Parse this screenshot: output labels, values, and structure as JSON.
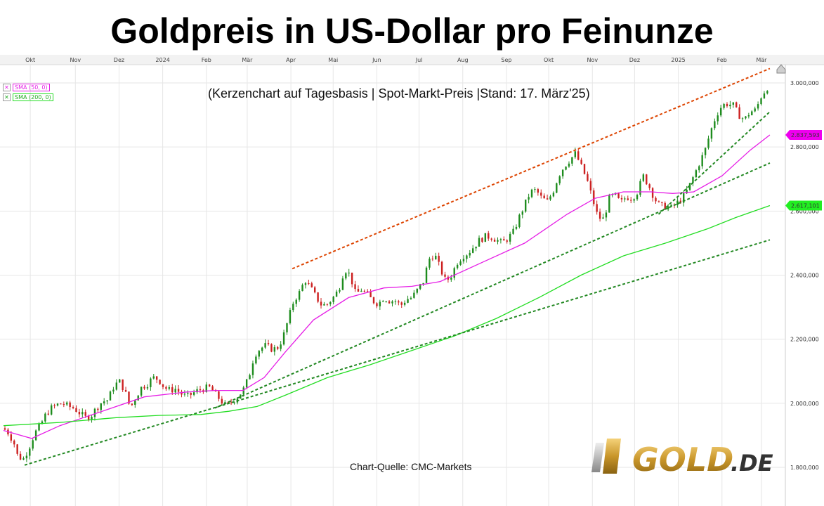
{
  "title": "Goldpreis in US-Dollar pro Feinunze",
  "subtitle": "(Kerzenchart auf Tagesbasis | Spot-Markt-Preis |Stand: 17. März'25)",
  "source": "Chart-Quelle: CMC-Markets",
  "logo_text": "GOLD.DE",
  "legend": [
    {
      "label": "SMA (50, 0)",
      "color": "#e61ee6"
    },
    {
      "label": "SMA (200, 0)",
      "color": "#22dd22"
    }
  ],
  "price_tags": [
    {
      "value": 2837.593,
      "label": "2.837,593",
      "color": "#ee00ee"
    },
    {
      "value": 2617.101,
      "label": "2.617,101",
      "color": "#22ee22"
    }
  ],
  "chart_data": {
    "type": "candlestick",
    "title": "Goldpreis in US-Dollar pro Feinunze",
    "subtitle": "(Kerzenchart auf Tagesbasis | Spot-Markt-Preis |Stand: 17. März'25)",
    "x_ticks": [
      "Okt",
      "Nov",
      "Dez",
      "2024",
      "Feb",
      "Mär",
      "Apr",
      "Mai",
      "Jun",
      "Jul",
      "Aug",
      "Sep",
      "Okt",
      "Nov",
      "Dez",
      "2025",
      "Feb",
      "Mär"
    ],
    "y_ticks": [
      1800,
      2000,
      2200,
      2400,
      2600,
      2800,
      3000
    ],
    "y_tick_labels": [
      "1.800,000",
      "2.000,000",
      "2.200,000",
      "2.400,000",
      "2.600,000",
      "2.800,000",
      "3.000,000"
    ],
    "ylim": [
      1780,
      3040
    ],
    "grid": true,
    "candle_colors": {
      "up": "#1e8c1e",
      "down": "#cc2020"
    },
    "close_series": {
      "name": "Gold Spot (approx. daily close)",
      "points": [
        [
          0,
          1922
        ],
        [
          4,
          1905
        ],
        [
          8,
          1870
        ],
        [
          10,
          1835
        ],
        [
          14,
          1825
        ],
        [
          18,
          1860
        ],
        [
          22,
          1905
        ],
        [
          26,
          1930
        ],
        [
          30,
          1965
        ],
        [
          34,
          1985
        ],
        [
          38,
          1995
        ],
        [
          42,
          2000
        ],
        [
          46,
          1990
        ],
        [
          50,
          1985
        ],
        [
          54,
          1970
        ],
        [
          58,
          1955
        ],
        [
          62,
          1960
        ],
        [
          66,
          1985
        ],
        [
          70,
          2005
        ],
        [
          74,
          2010
        ],
        [
          78,
          2050
        ],
        [
          82,
          2070
        ],
        [
          86,
          2040
        ],
        [
          90,
          1985
        ],
        [
          94,
          2020
        ],
        [
          98,
          2050
        ],
        [
          102,
          2060
        ],
        [
          106,
          2080
        ],
        [
          110,
          2075
        ],
        [
          114,
          2050
        ],
        [
          118,
          2040
        ],
        [
          122,
          2045
        ],
        [
          126,
          2030
        ],
        [
          130,
          2020
        ],
        [
          134,
          2030
        ],
        [
          138,
          2040
        ],
        [
          142,
          2045
        ],
        [
          146,
          2050
        ],
        [
          150,
          2030
        ],
        [
          154,
          2010
        ],
        [
          158,
          1990
        ],
        [
          162,
          2005
        ],
        [
          166,
          2020
        ],
        [
          170,
          2040
        ],
        [
          174,
          2080
        ],
        [
          178,
          2150
        ],
        [
          182,
          2170
        ],
        [
          186,
          2180
        ],
        [
          190,
          2170
        ],
        [
          194,
          2170
        ],
        [
          198,
          2200
        ],
        [
          202,
          2260
        ],
        [
          206,
          2320
        ],
        [
          210,
          2345
        ],
        [
          214,
          2385
        ],
        [
          218,
          2360
        ],
        [
          222,
          2330
        ],
        [
          226,
          2305
        ],
        [
          230,
          2310
        ],
        [
          234,
          2330
        ],
        [
          238,
          2355
        ],
        [
          242,
          2420
        ],
        [
          246,
          2400
        ],
        [
          250,
          2340
        ],
        [
          254,
          2355
        ],
        [
          258,
          2340
        ],
        [
          262,
          2320
        ],
        [
          266,
          2310
        ],
        [
          270,
          2330
        ],
        [
          274,
          2320
        ],
        [
          278,
          2320
        ],
        [
          282,
          2305
        ],
        [
          286,
          2325
        ],
        [
          290,
          2330
        ],
        [
          294,
          2355
        ],
        [
          298,
          2380
        ],
        [
          302,
          2450
        ],
        [
          306,
          2465
        ],
        [
          310,
          2420
        ],
        [
          314,
          2380
        ],
        [
          318,
          2400
        ],
        [
          322,
          2440
        ],
        [
          326,
          2460
        ],
        [
          330,
          2470
        ],
        [
          334,
          2490
        ],
        [
          338,
          2510
        ],
        [
          342,
          2520
        ],
        [
          346,
          2520
        ],
        [
          350,
          2510
        ],
        [
          354,
          2500
        ],
        [
          358,
          2515
        ],
        [
          362,
          2535
        ],
        [
          366,
          2580
        ],
        [
          370,
          2620
        ],
        [
          374,
          2660
        ],
        [
          378,
          2665
        ],
        [
          382,
          2640
        ],
        [
          386,
          2630
        ],
        [
          390,
          2660
        ],
        [
          394,
          2710
        ],
        [
          398,
          2740
        ],
        [
          402,
          2760
        ],
        [
          406,
          2780
        ],
        [
          410,
          2740
        ],
        [
          414,
          2700
        ],
        [
          418,
          2640
        ],
        [
          422,
          2580
        ],
        [
          426,
          2575
        ],
        [
          430,
          2640
        ],
        [
          434,
          2650
        ],
        [
          438,
          2625
        ],
        [
          442,
          2645
        ],
        [
          446,
          2640
        ],
        [
          450,
          2660
        ],
        [
          454,
          2710
        ],
        [
          458,
          2680
        ],
        [
          462,
          2640
        ],
        [
          466,
          2615
        ],
        [
          470,
          2615
        ],
        [
          474,
          2610
        ],
        [
          478,
          2625
        ],
        [
          482,
          2640
        ],
        [
          486,
          2670
        ],
        [
          490,
          2710
        ],
        [
          494,
          2750
        ],
        [
          498,
          2790
        ],
        [
          502,
          2850
        ],
        [
          506,
          2900
        ],
        [
          510,
          2930
        ],
        [
          514,
          2935
        ],
        [
          518,
          2930
        ],
        [
          522,
          2900
        ],
        [
          526,
          2885
        ],
        [
          530,
          2910
        ],
        [
          534,
          2915
        ],
        [
          538,
          2960
        ],
        [
          542,
          2985
        ],
        [
          544,
          2990
        ]
      ]
    },
    "series": [
      {
        "name": "SMA (50, 0)",
        "color": "#e61ee6",
        "points": [
          [
            0,
            1915
          ],
          [
            20,
            1890
          ],
          [
            40,
            1930
          ],
          [
            70,
            1975
          ],
          [
            100,
            2020
          ],
          [
            130,
            2035
          ],
          [
            150,
            2040
          ],
          [
            170,
            2040
          ],
          [
            185,
            2080
          ],
          [
            200,
            2160
          ],
          [
            220,
            2260
          ],
          [
            245,
            2330
          ],
          [
            270,
            2360
          ],
          [
            290,
            2365
          ],
          [
            310,
            2380
          ],
          [
            340,
            2440
          ],
          [
            370,
            2500
          ],
          [
            400,
            2590
          ],
          [
            420,
            2640
          ],
          [
            440,
            2660
          ],
          [
            460,
            2660
          ],
          [
            475,
            2655
          ],
          [
            490,
            2660
          ],
          [
            510,
            2710
          ],
          [
            530,
            2790
          ],
          [
            544,
            2837.6
          ]
        ]
      },
      {
        "name": "SMA (200, 0)",
        "color": "#22dd22",
        "points": [
          [
            0,
            1930
          ],
          [
            40,
            1940
          ],
          [
            80,
            1955
          ],
          [
            110,
            1962
          ],
          [
            140,
            1965
          ],
          [
            160,
            1975
          ],
          [
            180,
            1990
          ],
          [
            200,
            2025
          ],
          [
            230,
            2080
          ],
          [
            260,
            2120
          ],
          [
            290,
            2165
          ],
          [
            320,
            2210
          ],
          [
            350,
            2265
          ],
          [
            380,
            2330
          ],
          [
            410,
            2400
          ],
          [
            440,
            2460
          ],
          [
            470,
            2500
          ],
          [
            500,
            2545
          ],
          [
            520,
            2580
          ],
          [
            544,
            2617.1
          ]
        ]
      }
    ],
    "trendlines": [
      {
        "color": "#dd4400",
        "style": "dotted",
        "points": [
          [
            205,
            2420
          ],
          [
            544,
            3045
          ]
        ]
      },
      {
        "color": "#228822",
        "style": "dotted",
        "points": [
          [
            15,
            1807
          ],
          [
            544,
            2510
          ]
        ]
      },
      {
        "color": "#228822",
        "style": "dotted",
        "points": [
          [
            150,
            1985
          ],
          [
            544,
            2750
          ]
        ]
      },
      {
        "color": "#228822",
        "style": "dotted",
        "points": [
          [
            465,
            2590
          ],
          [
            544,
            2910
          ]
        ]
      }
    ]
  }
}
